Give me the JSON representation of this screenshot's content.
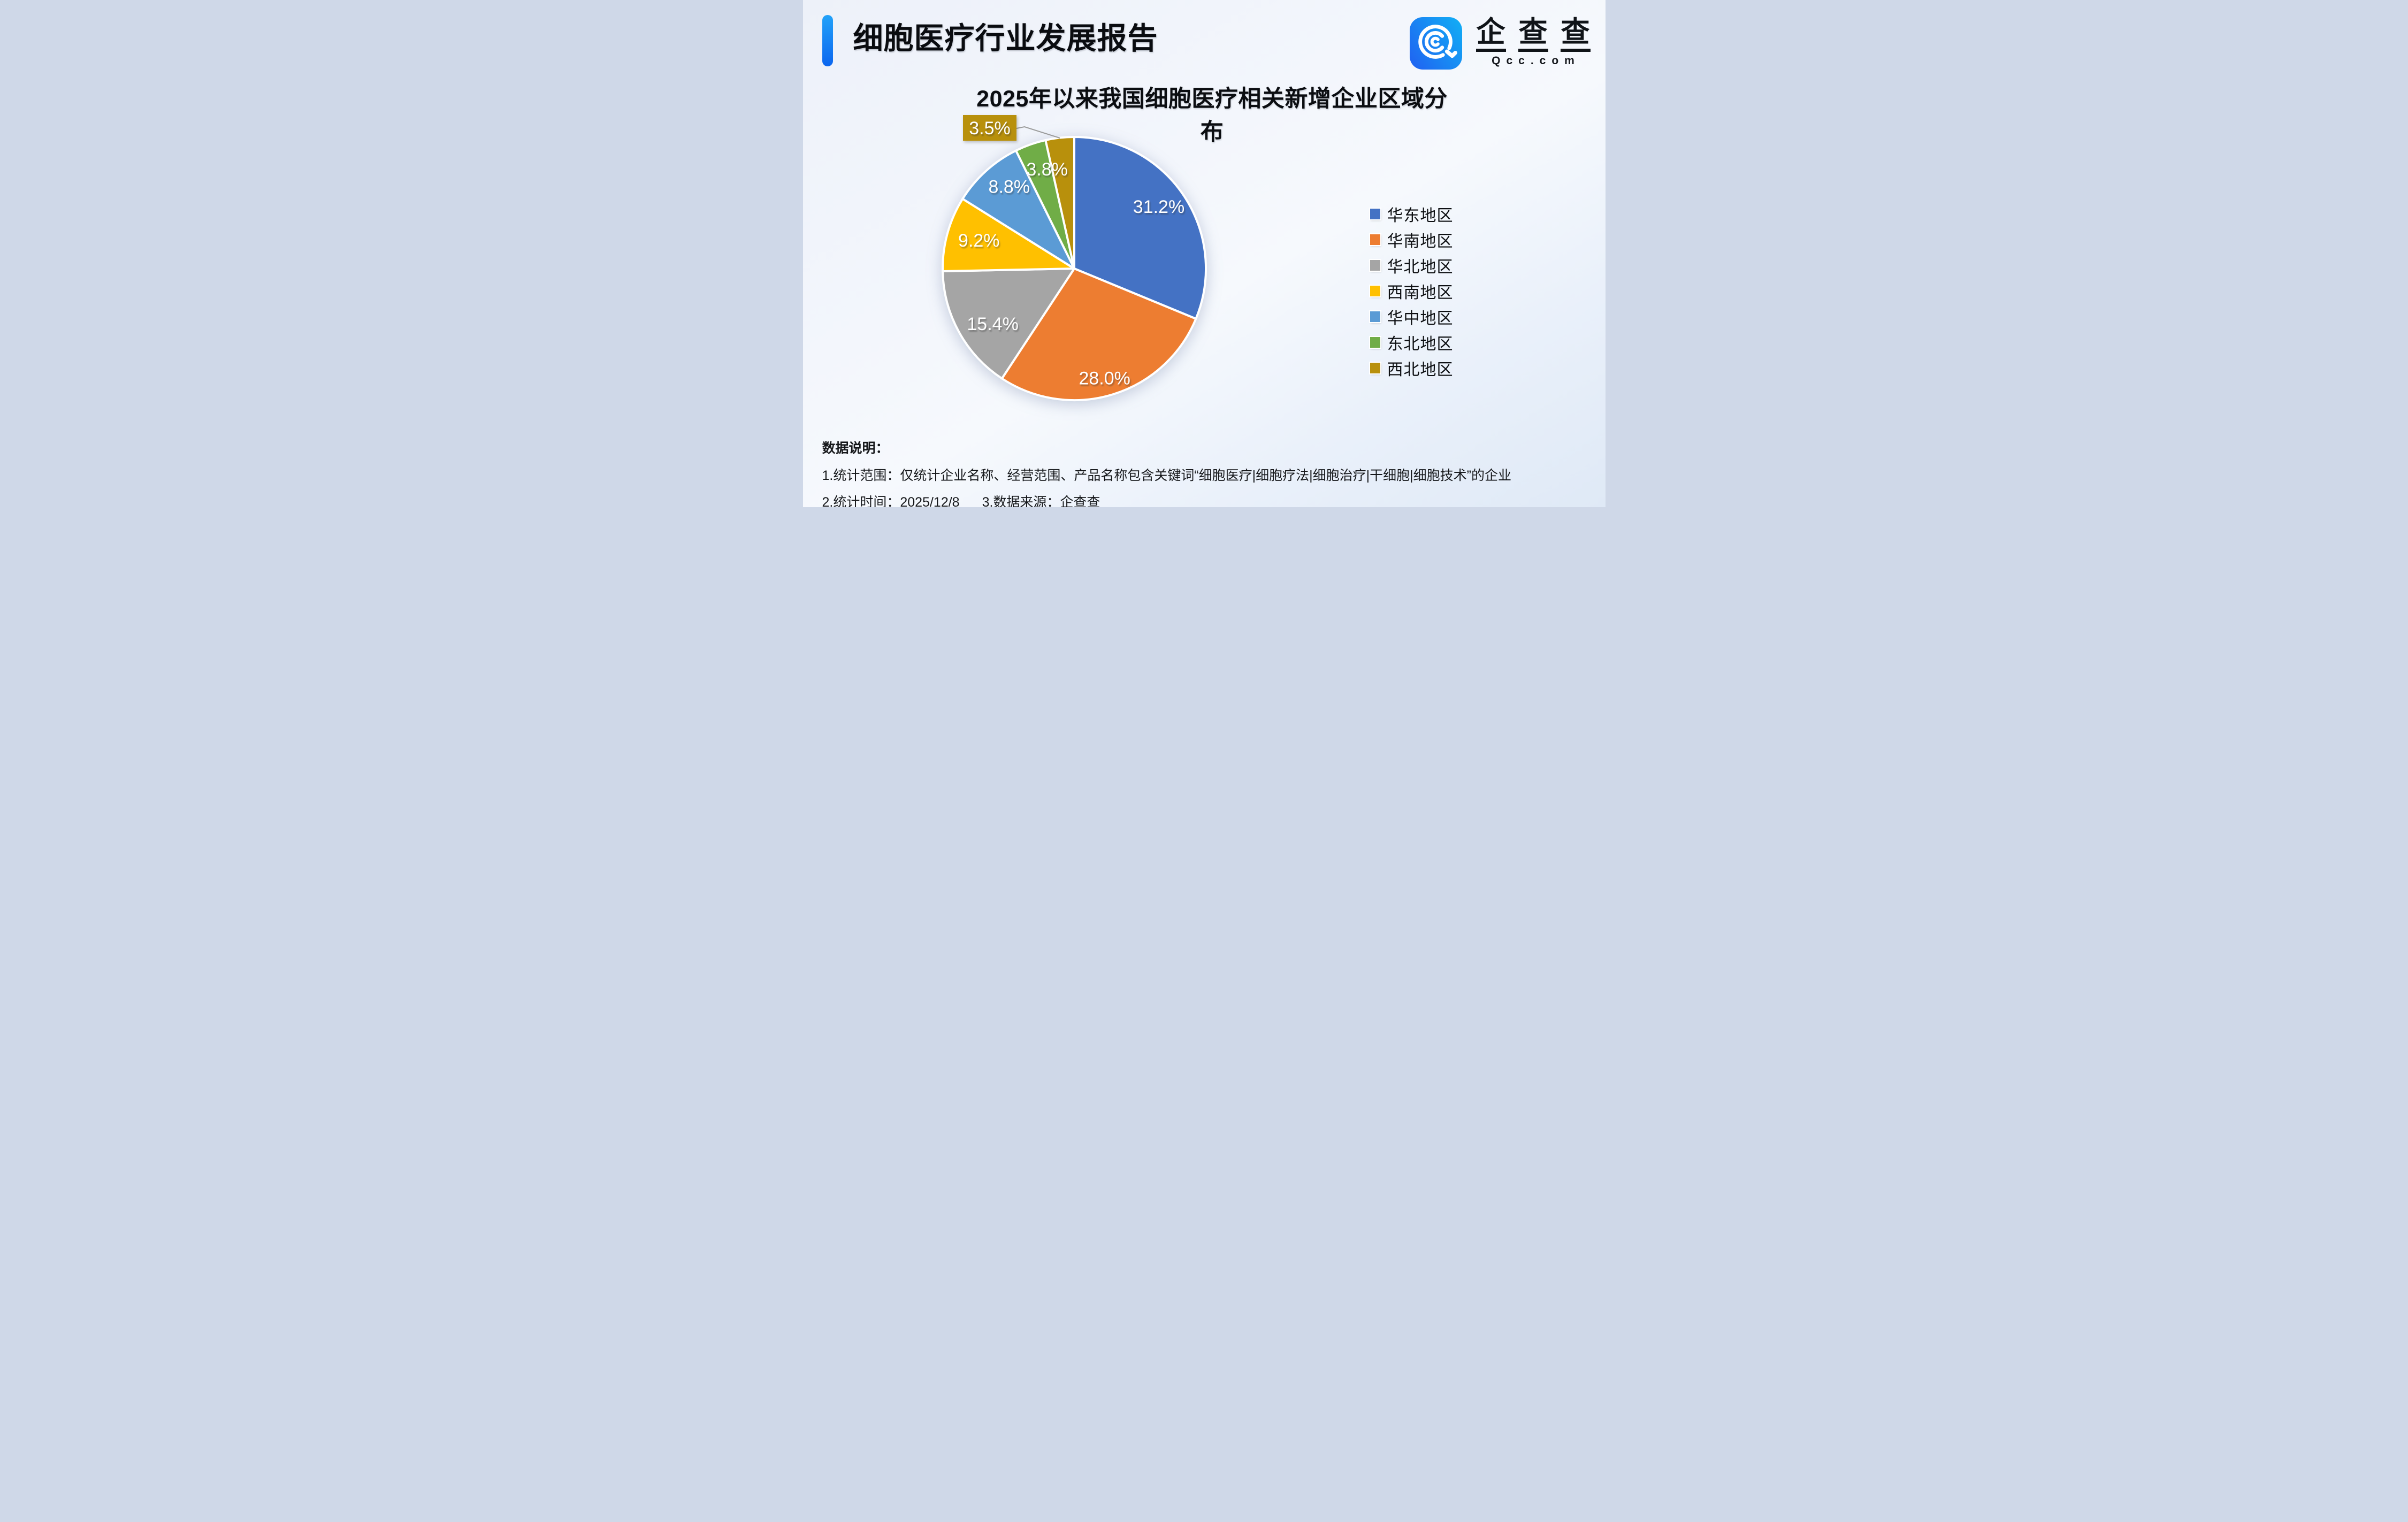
{
  "page": {
    "accent_color": "#0F7BF4"
  },
  "header": {
    "title": "细胞医疗行业发展报告"
  },
  "logo": {
    "name": "企查查",
    "domain": "Qcc.com",
    "icon_gradient": [
      "#1F65F1",
      "#12ABF5"
    ]
  },
  "chart_data": {
    "type": "pie",
    "title": "2025年以来我国细胞医疗相关新增企业区域分布",
    "categories": [
      "华东地区",
      "华南地区",
      "华北地区",
      "西南地区",
      "华中地区",
      "东北地区",
      "西北地区"
    ],
    "values": [
      31.2,
      28.0,
      15.4,
      9.2,
      8.8,
      3.8,
      3.5
    ],
    "labels": [
      "31.2%",
      "28.0%",
      "15.4%",
      "9.2%",
      "8.8%",
      "3.8%",
      "3.5%"
    ],
    "colors": [
      "#4472C4",
      "#ED7D31",
      "#A5A5A5",
      "#FFC000",
      "#5B9BD5",
      "#70AD47",
      "#B8900C"
    ],
    "unit": "%",
    "legend_position": "right",
    "start_angle_deg": 0,
    "direction": "clockwise",
    "callout": {
      "category": "西北地区",
      "label": "3.5%"
    },
    "leader_line_color": "#9a9a9a"
  },
  "footer": {
    "heading": "数据说明：",
    "line1": "1.统计范围：仅统计企业名称、经营范围、产品名称包含关键词“细胞医疗|细胞疗法|细胞治疗|干细胞|细胞技术”的企业",
    "line2_a": "2.统计时间：2025/12/8",
    "line2_b": "3.数据来源：企查查"
  }
}
